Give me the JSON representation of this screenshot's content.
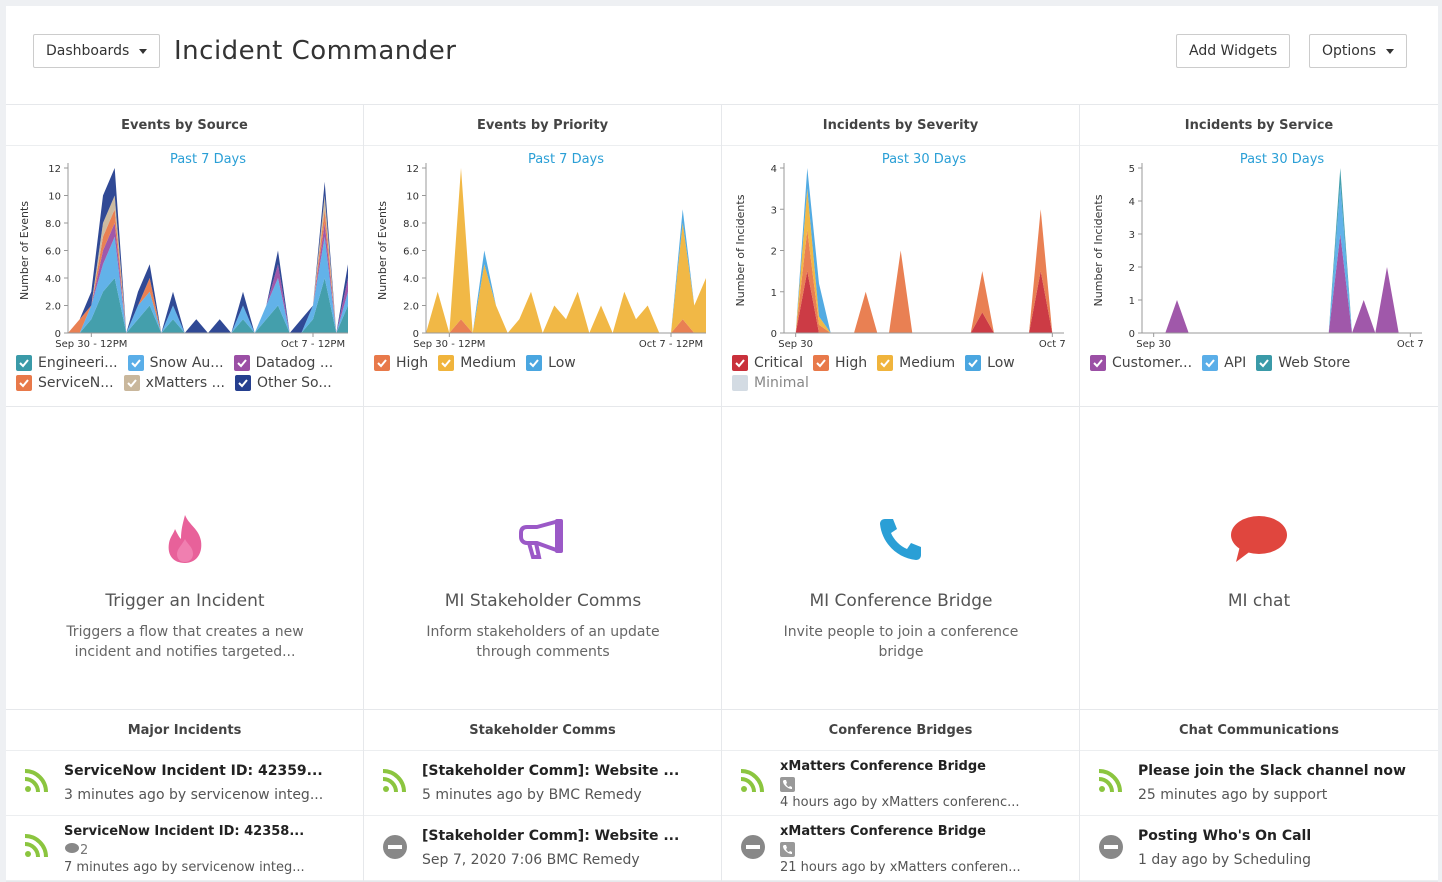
{
  "header": {
    "dashboards_button": "Dashboards",
    "title": "Incident Commander",
    "add_widgets": "Add Widgets",
    "options": "Options"
  },
  "charts": [
    {
      "type": "area",
      "title": "Events by Source",
      "subtitle": "Past 7 Days",
      "y_label": "Number of Events",
      "x": [
        0,
        1,
        2,
        3,
        4,
        5,
        6,
        7,
        8,
        9,
        10,
        11,
        12,
        13,
        14,
        15,
        16,
        17,
        18,
        19,
        20,
        21,
        22,
        23,
        24
      ],
      "xlim": [
        0,
        24
      ],
      "xticks": [
        {
          "value": 2,
          "label": "Sep 30 - 12PM"
        },
        {
          "value": 21,
          "label": "Oct 7 - 12PM"
        }
      ],
      "ylim": [
        0,
        12
      ],
      "yticks": [
        0,
        {
          "value": 2,
          "label": "2.0"
        },
        {
          "value": 4,
          "label": "4.0"
        },
        {
          "value": 6,
          "label": "6.0"
        },
        {
          "value": 8,
          "label": "8.0"
        },
        10,
        12
      ],
      "series": [
        {
          "name": "Engineeri...",
          "color": "#3a9aa8",
          "checked": true,
          "values": [
            0,
            0,
            1,
            3,
            4,
            0,
            1,
            2,
            0,
            1,
            0,
            0,
            0,
            0,
            0,
            1,
            0,
            1,
            2,
            0,
            0,
            1,
            4,
            0,
            2
          ]
        },
        {
          "name": "Snow Au...",
          "color": "#5aaee8",
          "checked": true,
          "values": [
            0,
            0,
            1,
            2,
            3,
            0,
            1,
            1,
            0,
            1,
            0,
            0,
            0,
            0,
            0,
            1,
            0,
            1,
            2,
            0,
            0,
            1,
            3,
            0,
            1
          ]
        },
        {
          "name": "Datadog ...",
          "color": "#9b4fa5",
          "checked": true,
          "values": [
            0,
            0,
            0,
            1,
            1,
            0,
            0,
            0,
            0,
            0,
            0,
            0,
            0,
            0,
            0,
            0,
            0,
            0,
            1,
            0,
            0,
            0,
            1,
            0,
            1
          ]
        },
        {
          "name": "ServiceN...",
          "color": "#e8794a",
          "checked": true,
          "values": [
            0,
            1,
            0,
            1,
            1,
            0,
            0,
            1,
            0,
            0,
            0,
            0,
            0,
            0,
            0,
            0,
            0,
            0,
            0,
            0,
            0,
            0,
            1,
            0,
            0
          ]
        },
        {
          "name": "xMatters ...",
          "color": "#c9b79c",
          "checked": true,
          "values": [
            0,
            0,
            0,
            1,
            1,
            0,
            0,
            0,
            0,
            0,
            0,
            0,
            0,
            0,
            0,
            0,
            0,
            0,
            0,
            0,
            0,
            0,
            1,
            0,
            0
          ]
        },
        {
          "name": "Other So...",
          "color": "#253f8f",
          "checked": true,
          "values": [
            0,
            0,
            1,
            2,
            2,
            0,
            1,
            1,
            0,
            1,
            0,
            1,
            0,
            1,
            0,
            1,
            0,
            0,
            1,
            0,
            1,
            0,
            1,
            0,
            1
          ]
        }
      ]
    },
    {
      "type": "area",
      "title": "Events by Priority",
      "subtitle": "Past 7 Days",
      "y_label": "Number of Events",
      "x": [
        0,
        1,
        2,
        3,
        4,
        5,
        6,
        7,
        8,
        9,
        10,
        11,
        12,
        13,
        14,
        15,
        16,
        17,
        18,
        19,
        20,
        21,
        22,
        23,
        24
      ],
      "xlim": [
        0,
        24
      ],
      "xticks": [
        {
          "value": 2,
          "label": "Sep 30 - 12PM"
        },
        {
          "value": 21,
          "label": "Oct 7 - 12PM"
        }
      ],
      "ylim": [
        0,
        12
      ],
      "yticks": [
        0,
        {
          "value": 2,
          "label": "2.0"
        },
        {
          "value": 4,
          "label": "4.0"
        },
        {
          "value": 6,
          "label": "6.0"
        },
        {
          "value": 8,
          "label": "8.0"
        },
        10,
        12
      ],
      "series": [
        {
          "name": "High",
          "color": "#e8794a",
          "checked": true,
          "values": [
            0,
            0,
            0,
            1,
            0,
            0,
            0,
            0,
            0,
            0,
            0,
            0,
            0,
            0,
            0,
            0,
            0,
            0,
            0,
            0,
            0,
            0,
            1,
            0,
            0
          ]
        },
        {
          "name": "Medium",
          "color": "#f0b43c",
          "checked": true,
          "values": [
            0,
            3,
            0,
            11,
            0,
            5,
            2,
            0,
            1,
            3,
            0,
            2,
            1,
            3,
            0,
            2,
            0,
            3,
            1,
            2,
            0,
            0,
            7,
            2,
            4
          ]
        },
        {
          "name": "Low",
          "color": "#4aa6e0",
          "checked": true,
          "values": [
            0,
            0,
            0,
            0,
            0,
            1,
            0,
            0,
            0,
            0,
            0,
            0,
            0,
            0,
            0,
            0,
            0,
            0,
            0,
            0,
            0,
            0,
            1,
            0,
            0
          ]
        }
      ]
    },
    {
      "type": "area",
      "title": "Incidents by Severity",
      "subtitle": "Past 30 Days",
      "y_label": "Number of Incidents",
      "x": [
        0,
        1,
        2,
        3,
        4,
        5,
        6,
        7,
        8,
        9,
        10,
        11,
        12,
        13,
        14,
        15,
        16,
        17,
        18,
        19,
        20,
        21,
        22,
        23,
        24
      ],
      "xlim": [
        0,
        24
      ],
      "xticks": [
        {
          "value": 1,
          "label": "Sep 30"
        },
        {
          "value": 23,
          "label": "Oct 7"
        }
      ],
      "ylim": [
        0,
        4
      ],
      "yticks": [
        0,
        1,
        2,
        3,
        4
      ],
      "series": [
        {
          "name": "Critical",
          "color": "#c9303b",
          "checked": true,
          "values": [
            0,
            0,
            1.5,
            0,
            0,
            0,
            0,
            0,
            0,
            0,
            0,
            0,
            0,
            0,
            0,
            0,
            0,
            0.5,
            0,
            0,
            0,
            0,
            1.5,
            0,
            0
          ]
        },
        {
          "name": "High",
          "color": "#e8794a",
          "checked": true,
          "values": [
            0,
            0,
            1,
            0.2,
            0,
            0,
            0,
            1,
            0,
            0,
            2,
            0,
            0,
            0,
            0,
            0,
            0,
            1,
            0,
            0,
            0,
            0,
            1.5,
            0,
            0
          ]
        },
        {
          "name": "Medium",
          "color": "#f0b43c",
          "checked": true,
          "values": [
            0,
            0,
            1,
            0.2,
            0,
            0,
            0,
            0,
            0,
            0,
            0,
            0,
            0,
            0,
            0,
            0,
            0,
            0,
            0,
            0,
            0,
            0,
            0,
            0,
            0
          ]
        },
        {
          "name": "Low",
          "color": "#4aa6e0",
          "checked": true,
          "values": [
            0,
            0,
            0.5,
            0.8,
            0,
            0,
            0,
            0,
            0,
            0,
            0,
            0,
            0,
            0,
            0,
            0,
            0,
            0,
            0,
            0,
            0,
            0,
            0,
            0,
            0
          ]
        },
        {
          "name": "Minimal",
          "color": "#d3dbe3",
          "checked": false,
          "values": [
            0,
            0,
            0,
            0,
            0,
            0,
            0,
            0,
            0,
            0,
            0,
            0,
            0,
            0,
            0,
            0,
            0,
            0,
            0,
            0,
            0,
            0,
            0,
            0,
            0
          ]
        }
      ]
    },
    {
      "type": "area",
      "title": "Incidents by Service",
      "subtitle": "Past 30 Days",
      "y_label": "Number of Incidents",
      "x": [
        0,
        1,
        2,
        3,
        4,
        5,
        6,
        7,
        8,
        9,
        10,
        11,
        12,
        13,
        14,
        15,
        16,
        17,
        18,
        19,
        20,
        21,
        22,
        23,
        24
      ],
      "xlim": [
        0,
        24
      ],
      "xticks": [
        {
          "value": 1,
          "label": "Sep 30"
        },
        {
          "value": 23,
          "label": "Oct 7"
        }
      ],
      "ylim": [
        0,
        5
      ],
      "yticks": [
        0,
        1,
        2,
        3,
        4,
        5
      ],
      "series": [
        {
          "name": "Customer...",
          "color": "#9b4fa5",
          "checked": true,
          "values": [
            0,
            0,
            0,
            1,
            0,
            0,
            0,
            0,
            0,
            0,
            0,
            0,
            0,
            0,
            0,
            0,
            0,
            3,
            0,
            1,
            0,
            2,
            0,
            0,
            0
          ]
        },
        {
          "name": "API",
          "color": "#5aaee8",
          "checked": true,
          "values": [
            0,
            0,
            0,
            0,
            0,
            0,
            0,
            0,
            0,
            0,
            0,
            0,
            0,
            0,
            0,
            0,
            0,
            1.5,
            0,
            0,
            0,
            0,
            0,
            0,
            0
          ]
        },
        {
          "name": "Web Store",
          "color": "#3a9aa8",
          "checked": true,
          "values": [
            0,
            0,
            0,
            0,
            0,
            0,
            0,
            0,
            0,
            0,
            0,
            0,
            0,
            0,
            0,
            0,
            0,
            0.5,
            0,
            0,
            0,
            0,
            0,
            0,
            0
          ]
        }
      ]
    }
  ],
  "tiles": [
    {
      "icon": "flame",
      "title": "Trigger an Incident",
      "description": "Triggers a flow that creates a new incident and notifies targeted..."
    },
    {
      "icon": "megaphone",
      "title": "MI Stakeholder Comms",
      "description": "Inform stakeholders of an update through comments"
    },
    {
      "icon": "phone",
      "title": "MI Conference Bridge",
      "description": "Invite people to join a conference bridge"
    },
    {
      "icon": "chat",
      "title": "MI chat",
      "description": ""
    }
  ],
  "lists": [
    {
      "title": "Major Incidents",
      "items": [
        {
          "icon": "rss",
          "title": "ServiceNow Incident ID: 42359...",
          "meta": "3 minutes ago by servicenow integ..."
        },
        {
          "icon": "rss",
          "title": "ServiceNow Incident ID: 42358...",
          "comments": 2,
          "meta": "7 minutes ago by servicenow integ..."
        }
      ]
    },
    {
      "title": "Stakeholder Comms",
      "items": [
        {
          "icon": "rss",
          "title": "[Stakeholder Comm]: Website ...",
          "meta": "5 minutes ago by BMC Remedy"
        },
        {
          "icon": "stopped",
          "title": "[Stakeholder Comm]: Website ...",
          "meta": "Sep 7, 2020 7:06 BMC Remedy"
        }
      ]
    },
    {
      "title": "Conference Bridges",
      "items": [
        {
          "icon": "rss",
          "title": "xMatters Conference Bridge",
          "badge": "phone",
          "meta": "4 hours ago by xMatters conferenc..."
        },
        {
          "icon": "stopped",
          "title": "xMatters Conference Bridge",
          "badge": "phone",
          "meta": "21 hours ago by xMatters conferen..."
        }
      ]
    },
    {
      "title": "Chat Communications",
      "items": [
        {
          "icon": "rss",
          "title": "Please join the Slack channel now",
          "meta": "25 minutes ago by support"
        },
        {
          "icon": "stopped",
          "title": "Posting Who's On Call",
          "meta": "1 day ago by Scheduling"
        }
      ]
    }
  ]
}
